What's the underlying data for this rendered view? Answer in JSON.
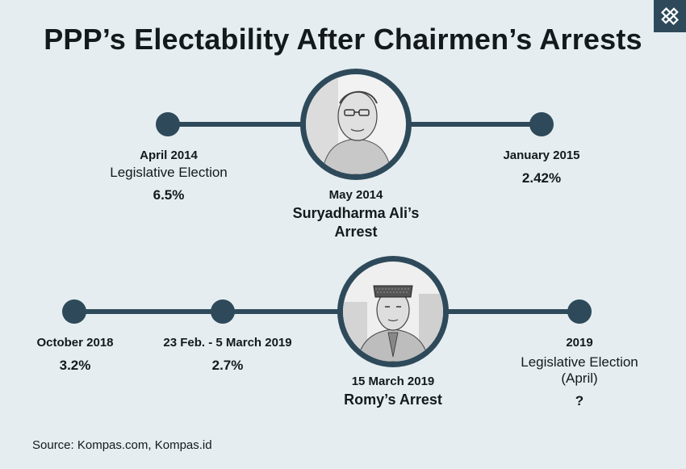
{
  "title": "PPP’s Electability After Chairmen’s Arrests",
  "logo": {
    "icon": "diamond-logo-icon",
    "color": "#2e4a5a"
  },
  "colors": {
    "accent": "#2e4a5a",
    "background": "#e5edf0"
  },
  "timeline_top": {
    "events": [
      {
        "date": "April 2014",
        "label": "Legislative Election",
        "value": "6.5%"
      },
      {
        "date": "May 2014",
        "label_line1": "Suryadharma Ali’s",
        "label_line2": "Arrest"
      },
      {
        "date": "January 2015",
        "value": "2.42%"
      }
    ],
    "photo": "suryadharma-ali-portrait"
  },
  "timeline_bottom": {
    "events": [
      {
        "date": "October 2018",
        "value": "3.2%"
      },
      {
        "date": "23 Feb. - 5 March 2019",
        "value": "2.7%"
      },
      {
        "date": "15 March 2019",
        "label": "Romy’s Arrest"
      },
      {
        "date": "2019",
        "label_line1": "Legislative Election",
        "label_line2": "(April)",
        "value": "?"
      }
    ],
    "photo": "romy-portrait"
  },
  "source": "Source: Kompas.com, Kompas.id"
}
